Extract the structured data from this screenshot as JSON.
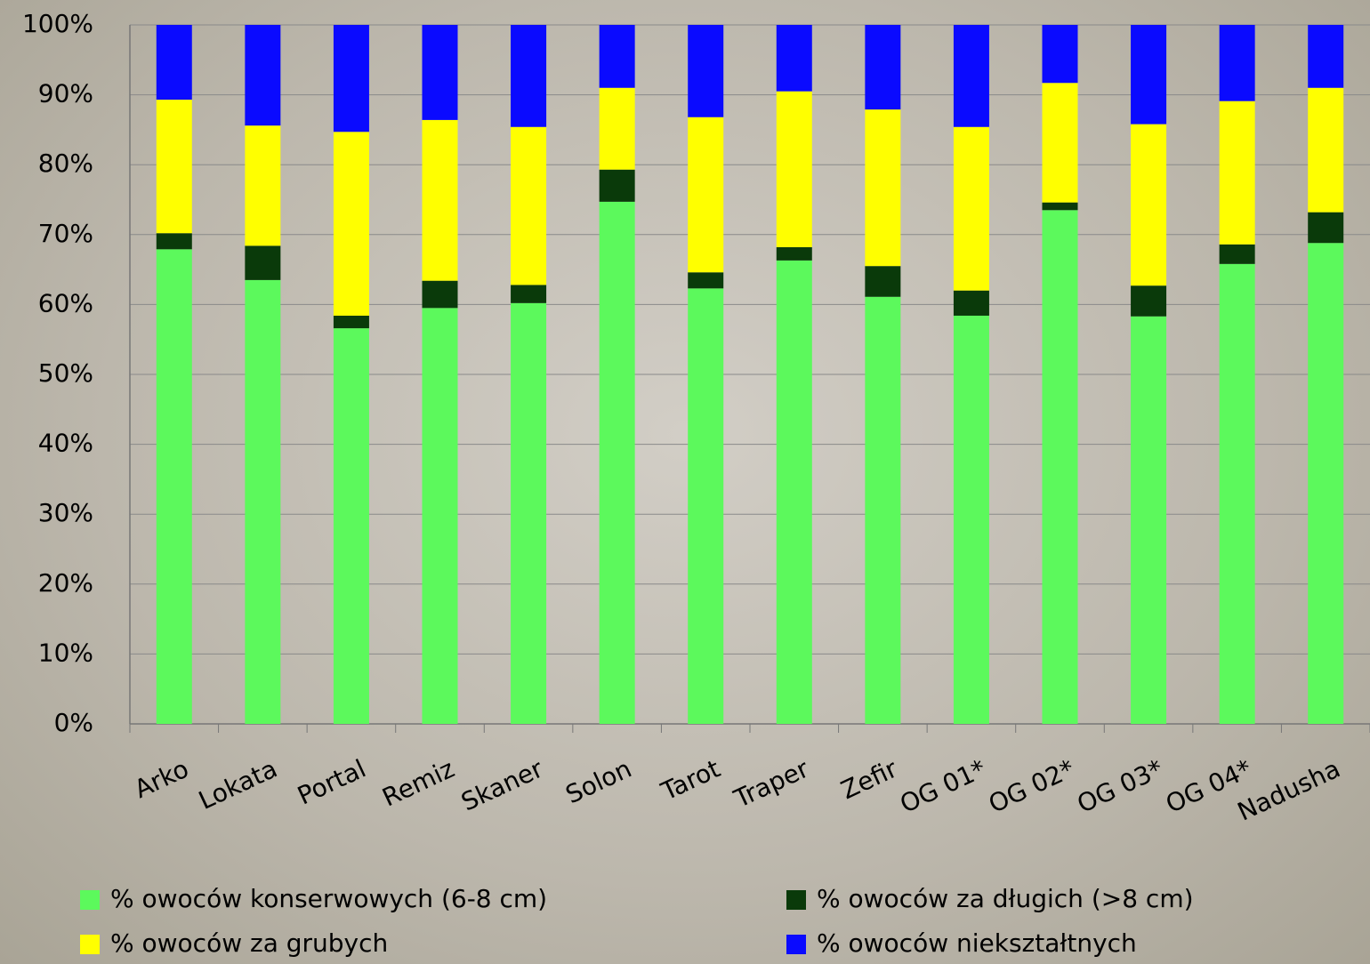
{
  "chart_data": {
    "type": "stacked_bar",
    "categories": [
      "Arko",
      "Lokata",
      "Portal",
      "Remiz",
      "Skaner",
      "Solon",
      "Tarot",
      "Traper",
      "Zefir",
      "OG 01*",
      "OG 02*",
      "OG 03*",
      "OG 04*",
      "Nadusha"
    ],
    "series": [
      {
        "name": "% owoców konserwowych (6-8 cm)",
        "color": "#5cf95c",
        "values": [
          67.9,
          63.5,
          56.6,
          59.5,
          60.2,
          74.7,
          62.3,
          66.3,
          61.1,
          58.4,
          73.5,
          58.3,
          65.8,
          68.8
        ]
      },
      {
        "name": "% owoców za długich (>8 cm)",
        "color": "#0a3a0a",
        "values": [
          2.3,
          4.9,
          1.8,
          3.9,
          2.6,
          4.6,
          2.3,
          1.9,
          4.4,
          3.6,
          1.1,
          4.4,
          2.8,
          4.4
        ]
      },
      {
        "name": "% owoców za grubych",
        "color": "#ffff00",
        "values": [
          19.1,
          17.2,
          26.3,
          23.0,
          22.6,
          11.7,
          22.2,
          22.3,
          22.4,
          23.4,
          17.1,
          23.1,
          20.5,
          17.8
        ]
      },
      {
        "name": "% owoców niekształtnych",
        "color": "#0a0aff",
        "values": [
          10.7,
          14.4,
          15.3,
          13.6,
          14.6,
          9.0,
          13.2,
          9.5,
          12.1,
          14.6,
          8.3,
          14.2,
          10.9,
          9.0
        ]
      }
    ],
    "ylim": [
      0,
      100
    ],
    "yticks": [
      {
        "value": 0,
        "label": "0%"
      },
      {
        "value": 10,
        "label": "10%"
      },
      {
        "value": 20,
        "label": "20%"
      },
      {
        "value": 30,
        "label": "30%"
      },
      {
        "value": 40,
        "label": "40%"
      },
      {
        "value": 50,
        "label": "50%"
      },
      {
        "value": 60,
        "label": "60%"
      },
      {
        "value": 70,
        "label": "70%"
      },
      {
        "value": 80,
        "label": "80%"
      },
      {
        "value": 90,
        "label": "90%"
      },
      {
        "value": 100,
        "label": "100%"
      }
    ],
    "grid": true
  }
}
